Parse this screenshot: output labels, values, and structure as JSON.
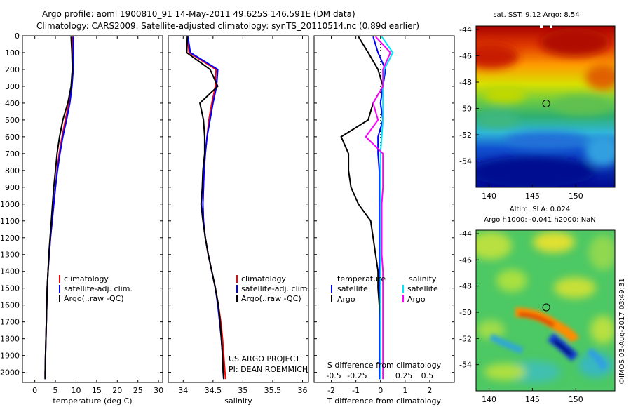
{
  "header": {
    "line1": "Argo profile: aoml 1900810_91 14-May-2011 49.625S 146.591E (DM data)",
    "line2": "Climatology: CARS2009. Satellite-adjusted climatology: synTS_20110514.nc (0.89d earlier)"
  },
  "colors": {
    "climatology": "#ff0000",
    "satellite": "#0000ff",
    "argo": "#000000",
    "salinity_satellite": "#00e5ff",
    "salinity_argo": "#ff00ff"
  },
  "chart_data": [
    {
      "type": "line",
      "panel": "temperature",
      "xlabel": "temperature (deg C)",
      "ylabel": "",
      "xlim": [
        -3,
        31
      ],
      "ylim": [
        2060,
        0
      ],
      "xticks": [
        0,
        5,
        10,
        15,
        20,
        25,
        30
      ],
      "yticks": [
        0,
        100,
        200,
        300,
        400,
        500,
        600,
        700,
        800,
        900,
        1000,
        1100,
        1200,
        1300,
        1400,
        1500,
        1600,
        1700,
        1800,
        1900,
        2000
      ],
      "legend": {
        "placement": "lower-middle",
        "entries": [
          "climatology",
          "satellite-adj. clim.",
          "Argo(..raw -QC)"
        ]
      },
      "series": [
        {
          "name": "climatology",
          "color": "#ff0000",
          "x": [
            9.1,
            9.2,
            9.1,
            8.9,
            8.3,
            7.4,
            6.6,
            5.9,
            5.4,
            5.0,
            4.6,
            4.2,
            3.8,
            3.5,
            3.2,
            3.0,
            2.9,
            2.8,
            2.7,
            2.6,
            2.5,
            2.5
          ],
          "y": [
            5,
            100,
            200,
            300,
            400,
            500,
            600,
            700,
            800,
            900,
            1000,
            1100,
            1200,
            1300,
            1400,
            1500,
            1600,
            1700,
            1800,
            1900,
            2000,
            2040
          ]
        },
        {
          "name": "satellite-adj. clim.",
          "color": "#0000ff",
          "x": [
            9.3,
            9.4,
            9.3,
            9.0,
            8.5,
            7.7,
            6.8,
            6.1,
            5.5,
            5.0,
            4.6,
            4.2,
            3.8,
            3.5,
            3.2,
            3.0,
            2.9,
            2.8,
            2.7,
            2.6,
            2.5,
            2.5
          ],
          "y": [
            5,
            100,
            200,
            300,
            400,
            500,
            600,
            700,
            800,
            900,
            1000,
            1100,
            1200,
            1300,
            1400,
            1500,
            1600,
            1700,
            1800,
            1900,
            2000,
            2040
          ]
        },
        {
          "name": "Argo(..raw -QC)",
          "color": "#000000",
          "x": [
            8.8,
            9.0,
            9.1,
            8.8,
            8.0,
            6.8,
            6.0,
            5.4,
            5.0,
            4.6,
            4.3,
            4.0,
            3.7,
            3.4,
            3.2,
            3.0,
            2.9,
            2.8,
            2.7,
            2.6,
            2.5,
            2.5
          ],
          "y": [
            5,
            100,
            200,
            300,
            400,
            500,
            600,
            700,
            800,
            900,
            1000,
            1100,
            1200,
            1300,
            1400,
            1500,
            1600,
            1700,
            1800,
            1900,
            2000,
            2040
          ]
        }
      ]
    },
    {
      "type": "line",
      "panel": "salinity",
      "xlabel": "salinity",
      "ylabel": "",
      "xlim": [
        33.75,
        36.1
      ],
      "ylim": [
        2060,
        0
      ],
      "xticks": [
        34,
        34.5,
        35,
        35.5,
        36
      ],
      "legend": {
        "placement": "lower-middle",
        "entries": [
          "climatology",
          "satellite-adj. clim.",
          "Argo(..raw -QC)"
        ]
      },
      "annotation": [
        "US ARGO PROJECT",
        "PI: DEAN ROEMMICH"
      ],
      "series": [
        {
          "name": "climatology",
          "color": "#ff0000",
          "x": [
            34.07,
            34.1,
            34.55,
            34.54,
            34.48,
            34.43,
            34.4,
            34.37,
            34.35,
            34.34,
            34.33,
            34.34,
            34.37,
            34.42,
            34.48,
            34.54,
            34.59,
            34.63,
            34.66,
            34.68,
            34.7,
            34.71
          ],
          "y": [
            5,
            100,
            200,
            300,
            400,
            500,
            600,
            700,
            800,
            900,
            1000,
            1100,
            1200,
            1300,
            1400,
            1500,
            1600,
            1700,
            1800,
            1900,
            2000,
            2040
          ]
        },
        {
          "name": "satellite-adj. clim.",
          "color": "#0000ff",
          "x": [
            34.08,
            34.12,
            34.58,
            34.56,
            34.5,
            34.45,
            34.4,
            34.37,
            34.35,
            34.34,
            34.33,
            34.34,
            34.37,
            34.42,
            34.48,
            34.54,
            34.58,
            34.61,
            34.64,
            34.66,
            34.67,
            34.68
          ],
          "y": [
            5,
            100,
            200,
            300,
            400,
            500,
            600,
            700,
            800,
            900,
            1000,
            1100,
            1200,
            1300,
            1400,
            1500,
            1600,
            1700,
            1800,
            1900,
            2000,
            2040
          ]
        },
        {
          "name": "Argo(..raw -QC)",
          "color": "#000000",
          "x": [
            34.07,
            34.06,
            34.45,
            34.58,
            34.28,
            34.34,
            34.36,
            34.36,
            34.33,
            34.32,
            34.3,
            34.33,
            34.37,
            34.42,
            34.48,
            34.54,
            34.59,
            34.62,
            34.64,
            34.66,
            34.67,
            34.68
          ],
          "y": [
            5,
            100,
            200,
            300,
            400,
            500,
            600,
            700,
            800,
            900,
            1000,
            1100,
            1200,
            1300,
            1400,
            1500,
            1600,
            1700,
            1800,
            1900,
            2000,
            2040
          ]
        }
      ]
    },
    {
      "type": "line",
      "panel": "difference",
      "xlabel": "T difference from climatology",
      "xlabel_top": "S difference from climatology",
      "ylabel": "",
      "xlim": [
        -2.7,
        3.0
      ],
      "ylim": [
        2060,
        0
      ],
      "xticks": [
        -2,
        -1,
        0,
        1,
        2
      ],
      "xticks_s": [
        "-0.5",
        "-0.25",
        "0",
        "0.25",
        "0.5"
      ],
      "legend": {
        "placement": "lower",
        "groups": [
          {
            "title": "temperature",
            "entries": [
              "satellite",
              "Argo"
            ]
          },
          {
            "title": "salinity",
            "entries": [
              "satellite",
              "Argo"
            ]
          }
        ]
      },
      "series": [
        {
          "name": "satellite",
          "group": "temperature",
          "color": "#0000ff",
          "x": [
            -0.3,
            -0.1,
            0.2,
            0.1,
            0.0,
            0.1,
            -0.1,
            -0.1,
            -0.05,
            -0.05,
            -0.05,
            -0.05,
            -0.05,
            -0.05,
            -0.05,
            -0.05,
            -0.05,
            -0.05,
            -0.05,
            -0.05,
            -0.05,
            -0.05
          ],
          "y": [
            5,
            100,
            200,
            300,
            400,
            500,
            600,
            700,
            800,
            900,
            1000,
            1100,
            1200,
            1300,
            1400,
            1500,
            1600,
            1700,
            1800,
            1900,
            2000,
            2040
          ]
        },
        {
          "name": "Argo",
          "group": "temperature",
          "color": "#000000",
          "x": [
            -0.9,
            -0.5,
            -0.1,
            0.1,
            -0.3,
            -0.5,
            -1.6,
            -1.3,
            -1.3,
            -1.2,
            -0.9,
            -0.4,
            -0.3,
            -0.2,
            -0.1,
            -0.1,
            -0.05,
            0.0,
            0.0,
            0.0,
            0.0,
            0.0
          ],
          "y": [
            5,
            100,
            200,
            300,
            400,
            500,
            600,
            700,
            800,
            900,
            1000,
            1100,
            1200,
            1300,
            1400,
            1500,
            1600,
            1700,
            1800,
            1900,
            2000,
            2040
          ]
        },
        {
          "name": "satellite",
          "group": "salinity",
          "color": "#00e5ff",
          "x": [
            0.05,
            0.5,
            0.15,
            0.1,
            0.1,
            0.1,
            0.05,
            0.0,
            0.0,
            0.0,
            0.0,
            0.0,
            0.0,
            0.0,
            0.0,
            0.0,
            0.0,
            0.0,
            0.0,
            0.0,
            0.0,
            0.0
          ],
          "y": [
            5,
            100,
            200,
            300,
            400,
            500,
            600,
            700,
            800,
            900,
            1000,
            1100,
            1200,
            1300,
            1400,
            1500,
            1600,
            1700,
            1800,
            1900,
            2000,
            2040
          ]
        },
        {
          "name": "Argo",
          "group": "salinity",
          "color": "#ff00ff",
          "x": [
            -0.2,
            0.4,
            0.1,
            0.1,
            -0.3,
            -0.1,
            -0.6,
            0.1,
            0.1,
            0.1,
            0.05,
            0.05,
            0.05,
            0.05,
            0.1,
            0.1,
            0.1,
            0.1,
            0.1,
            0.1,
            0.1,
            0.1
          ],
          "y": [
            5,
            100,
            200,
            300,
            400,
            500,
            600,
            700,
            800,
            900,
            1000,
            1100,
            1200,
            1300,
            1400,
            1500,
            1600,
            1700,
            1800,
            1900,
            2000,
            2040
          ]
        }
      ]
    },
    {
      "type": "heatmap",
      "panel": "sst-map",
      "title": "sat. SST: 9.12  Argo: 8.54",
      "xlim": [
        138.5,
        154.5
      ],
      "ylim": [
        -56,
        -44
      ],
      "xticks": [
        140,
        145,
        150
      ],
      "yticks": [
        -44,
        -46,
        -48,
        -50,
        -52,
        -54
      ],
      "marker": {
        "lon": 146.591,
        "lat": -49.625
      }
    },
    {
      "type": "heatmap",
      "panel": "sla-map",
      "title": "Altim. SLA: 0.024",
      "subtitle": "Argo h1000: -0.041 h2000: NaN",
      "xlim": [
        138.5,
        154.5
      ],
      "ylim": [
        -56,
        -44
      ],
      "xticks": [
        140,
        145,
        150
      ],
      "yticks": [
        -44,
        -46,
        -48,
        -50,
        -52,
        -54
      ],
      "marker": {
        "lon": 146.591,
        "lat": -49.625
      }
    }
  ],
  "legend_labels": {
    "climatology": "climatology",
    "satellite_adj": "satellite-adj. clim.",
    "argo_raw": "Argo(..raw -QC)",
    "temperature": "temperature",
    "salinity": "salinity",
    "satellite": "satellite",
    "argo": "Argo"
  },
  "annotation": {
    "project": "US ARGO PROJECT",
    "pi": "PI: DEAN ROEMMICH"
  },
  "watermark": "©IMOS 03-Aug-2017 03:49:31"
}
